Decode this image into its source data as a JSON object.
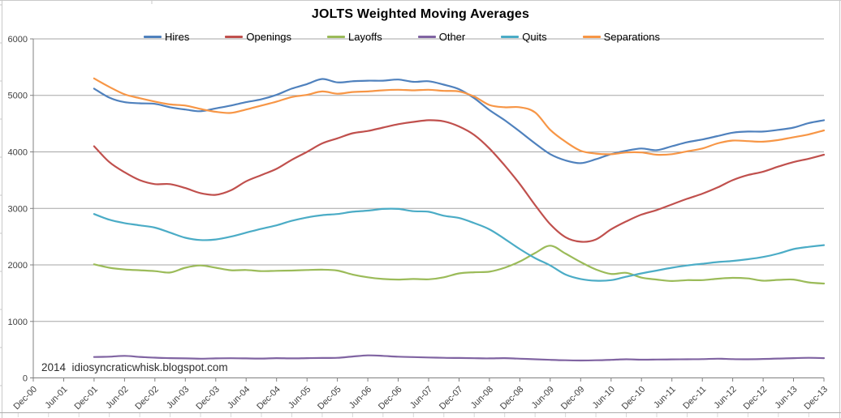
{
  "frame": {
    "background": "#FFFFFF",
    "outer_border_color": "#C9C9C9",
    "gridline_color": "#A6A6A6",
    "axis_color": "#808080",
    "tick_label_color": "#404040"
  },
  "chart_data": {
    "type": "line",
    "title": "JOLTS Weighted Moving Averages",
    "watermark": "2014  idiosyncraticwhisk.blogspot.com",
    "legend_position": "top",
    "grid": true,
    "x_axis": {
      "tick_labels": [
        "Dec-00",
        "Jun-01",
        "Dec-01",
        "Jun-02",
        "Dec-02",
        "Jun-03",
        "Dec-03",
        "Jun-04",
        "Dec-04",
        "Jun-05",
        "Dec-05",
        "Jun-06",
        "Dec-06",
        "Jun-07",
        "Dec-07",
        "Jun-08",
        "Dec-08",
        "Jun-09",
        "Dec-09",
        "Jun-10",
        "Dec-10",
        "Jun-11",
        "Dec-11",
        "Jun-12",
        "Dec-12",
        "Jun-13",
        "Dec-13"
      ],
      "label_rotation_deg": 45,
      "tick_interval_months": 6
    },
    "y_axis": {
      "min": 0,
      "max": 6000,
      "step": 1000,
      "tick_labels": [
        "0",
        "1000",
        "2000",
        "3000",
        "4000",
        "5000",
        "6000"
      ]
    },
    "series_x": {
      "start_label": "Dec-01",
      "end_label": "Dec-13",
      "interval_months": 3
    },
    "series": [
      {
        "name": "Hires",
        "color": "#4F81BD",
        "values": [
          5120,
          4960,
          4880,
          4860,
          4850,
          4790,
          4750,
          4720,
          4770,
          4820,
          4880,
          4930,
          5010,
          5120,
          5200,
          5290,
          5230,
          5250,
          5260,
          5260,
          5280,
          5240,
          5250,
          5190,
          5110,
          4950,
          4740,
          4560,
          4360,
          4150,
          3960,
          3850,
          3800,
          3870,
          3960,
          4020,
          4060,
          4030,
          4100,
          4170,
          4220,
          4280,
          4340,
          4360,
          4360,
          4390,
          4430,
          4510,
          4560
        ]
      },
      {
        "name": "Openings",
        "color": "#C0504D",
        "values": [
          4100,
          3820,
          3640,
          3500,
          3430,
          3430,
          3360,
          3270,
          3240,
          3320,
          3480,
          3590,
          3700,
          3860,
          4000,
          4150,
          4240,
          4330,
          4370,
          4430,
          4490,
          4530,
          4560,
          4540,
          4450,
          4300,
          4060,
          3760,
          3430,
          3060,
          2720,
          2490,
          2410,
          2450,
          2630,
          2770,
          2890,
          2970,
          3070,
          3170,
          3260,
          3370,
          3500,
          3590,
          3650,
          3740,
          3820,
          3880,
          3950
        ]
      },
      {
        "name": "Layoffs",
        "color": "#9BBB59",
        "values": [
          2010,
          1950,
          1920,
          1905,
          1890,
          1865,
          1950,
          1990,
          1950,
          1905,
          1910,
          1890,
          1895,
          1900,
          1910,
          1915,
          1900,
          1830,
          1780,
          1750,
          1740,
          1750,
          1745,
          1780,
          1850,
          1870,
          1880,
          1950,
          2060,
          2210,
          2340,
          2200,
          2050,
          1920,
          1840,
          1860,
          1775,
          1740,
          1715,
          1730,
          1730,
          1755,
          1770,
          1760,
          1720,
          1735,
          1740,
          1690,
          1670
        ]
      },
      {
        "name": "Other",
        "color": "#8064A2",
        "values": [
          370,
          375,
          390,
          372,
          358,
          350,
          345,
          340,
          345,
          348,
          345,
          342,
          350,
          345,
          350,
          352,
          355,
          378,
          398,
          390,
          375,
          368,
          362,
          355,
          352,
          348,
          345,
          350,
          340,
          330,
          320,
          312,
          308,
          312,
          320,
          330,
          322,
          325,
          328,
          330,
          332,
          340,
          332,
          330,
          335,
          342,
          350,
          355,
          350
        ]
      },
      {
        "name": "Quits",
        "color": "#4BACC6",
        "values": [
          2900,
          2800,
          2740,
          2700,
          2660,
          2570,
          2480,
          2440,
          2450,
          2500,
          2570,
          2640,
          2700,
          2780,
          2840,
          2880,
          2900,
          2940,
          2960,
          2990,
          2990,
          2950,
          2940,
          2870,
          2830,
          2740,
          2630,
          2460,
          2280,
          2120,
          1990,
          1830,
          1750,
          1720,
          1730,
          1790,
          1850,
          1900,
          1950,
          1990,
          2020,
          2050,
          2070,
          2100,
          2140,
          2200,
          2280,
          2320,
          2350
        ]
      },
      {
        "name": "Separations",
        "color": "#F79646",
        "values": [
          5300,
          5150,
          5020,
          4950,
          4890,
          4840,
          4820,
          4760,
          4710,
          4690,
          4750,
          4820,
          4890,
          4970,
          5010,
          5070,
          5030,
          5060,
          5070,
          5090,
          5100,
          5090,
          5100,
          5080,
          5070,
          4980,
          4830,
          4790,
          4790,
          4700,
          4390,
          4180,
          4020,
          3970,
          3960,
          3990,
          3990,
          3950,
          3960,
          4010,
          4060,
          4150,
          4200,
          4190,
          4180,
          4210,
          4260,
          4310,
          4380
        ]
      }
    ]
  }
}
